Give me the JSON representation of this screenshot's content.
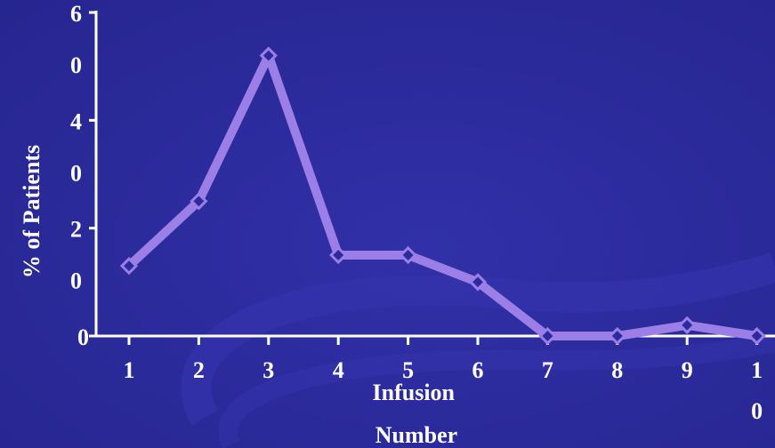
{
  "colors": {
    "background": "#2b2a9e",
    "axis": "#ffffff",
    "line": "#9b7fe6",
    "marker_fill": "#2b2a9e"
  },
  "chart_data": {
    "type": "line",
    "x": [
      1,
      2,
      3,
      4,
      5,
      6,
      7,
      8,
      9,
      10
    ],
    "series": [
      {
        "values": [
          13,
          25,
          52,
          15,
          15,
          10,
          0,
          0,
          2,
          0
        ]
      }
    ],
    "xlabel": "Infusion Number",
    "ylabel": "% of Patients",
    "ylim": [
      0,
      60
    ],
    "yticks": [
      "0",
      "20",
      "40",
      "60"
    ],
    "xticks": [
      "1",
      "2",
      "3",
      "4",
      "5",
      "6",
      "7",
      "8",
      "9",
      "10"
    ],
    "grid": false,
    "legend": "none"
  }
}
